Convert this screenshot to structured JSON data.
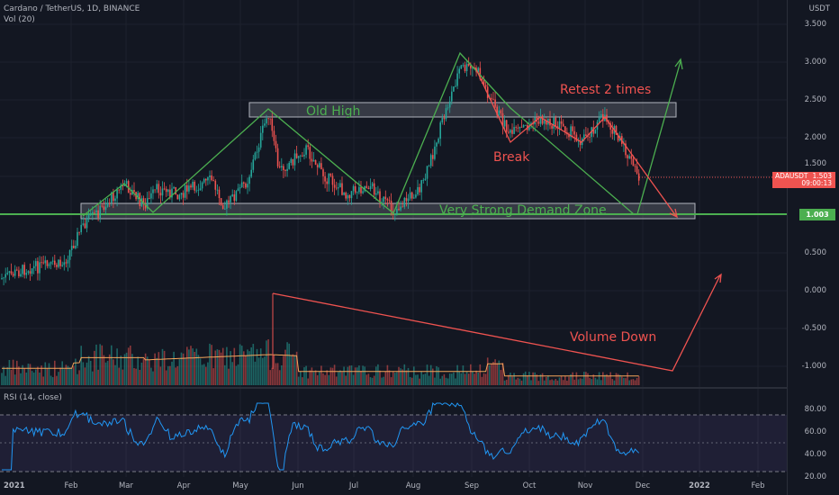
{
  "header": {
    "pair_label": "Cardano / TetherUS, 1D, BINANCE",
    "volume_label": "Vol (20)",
    "currency": "USDT"
  },
  "price_axis": {
    "labels": [
      "3.500",
      "3.000",
      "2.500",
      "2.000",
      "1.500",
      "0.500",
      "0.000",
      "-0.500",
      "-1.000"
    ]
  },
  "price_tags": {
    "symbol": "ADAUSDT",
    "price": "1.503",
    "countdown": "09:00:13",
    "level": "1.003"
  },
  "rsi": {
    "title": "RSI (14, close)",
    "labels": [
      "80.00",
      "60.00",
      "40.00",
      "20.00"
    ]
  },
  "time_axis": {
    "labels": [
      "2021",
      "Feb",
      "Mar",
      "Apr",
      "May",
      "Jun",
      "Jul",
      "Aug",
      "Sep",
      "Oct",
      "Nov",
      "Dec",
      "2022",
      "Feb"
    ]
  },
  "annotations": {
    "old_high": "Old High",
    "retest": "Retest 2 times",
    "break": "Break",
    "demand_zone": "Very Strong Demand Zone",
    "volume_down": "Volume Down"
  },
  "colors": {
    "background": "#131722",
    "up": "#26a69a",
    "down": "#ef5350",
    "green_annotation": "#4caf50",
    "red_annotation": "#ef5350",
    "rsi_line": "#2196f3",
    "rsi_band": "#7e57c2"
  }
}
